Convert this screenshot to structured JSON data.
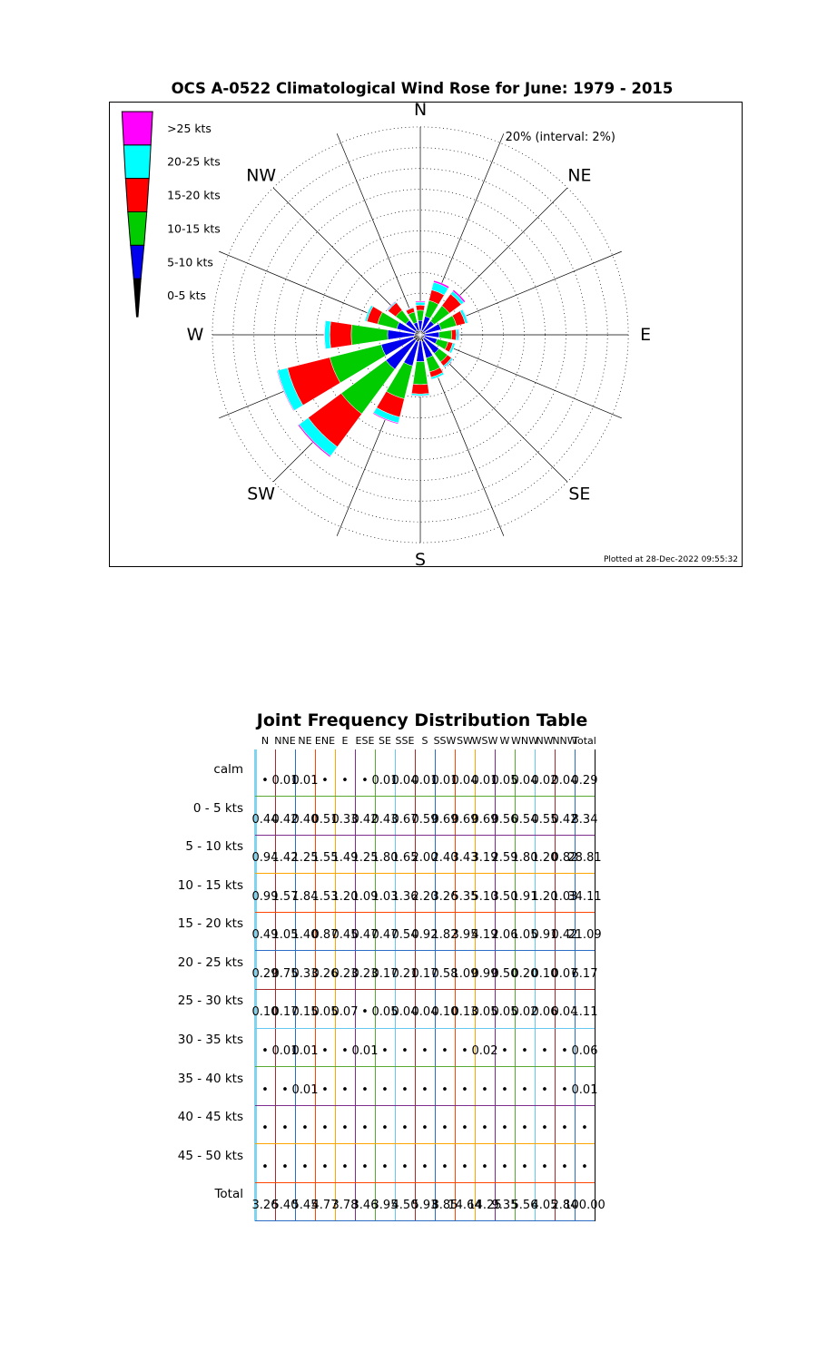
{
  "page": {
    "plotted_at": "Plotted at 28-Dec-2022 09:55:32"
  },
  "rose": {
    "compass_labels": [
      "N",
      "NE",
      "E",
      "SE",
      "S",
      "SW",
      "W",
      "NW"
    ],
    "radial_axis_label": "20% (interval: 2%)",
    "legend": [
      {
        "label": ">25 kts",
        "color": "#ff00ff"
      },
      {
        "label": "20-25 kts",
        "color": "#00ffff"
      },
      {
        "label": "15-20 kts",
        "color": "#ff0000"
      },
      {
        "label": "10-15 kts",
        "color": "#00cc00"
      },
      {
        "label": "5-10 kts",
        "color": "#0000ee"
      },
      {
        "label": "0-5 kts",
        "color": "#000000"
      }
    ]
  },
  "table_style": {
    "left_edge_color": "#7fd4f0",
    "right_edge_color": "#000000",
    "vertical_cycle": [
      "#a52a2a",
      "#2b6cc4",
      "#ff4500",
      "#ffa500",
      "#7d2d8b",
      "#58a832",
      "#64c8f0"
    ],
    "horizontal_cycle": [
      "#58a832",
      "#7d2d8b",
      "#ffa500",
      "#ff4500",
      "#2b6cc4",
      "#a52a2a",
      "#64c8f0"
    ]
  },
  "chart_data": [
    {
      "type": "bar",
      "polar": true,
      "title": "OCS A-0522 Climatological Wind Rose for June: 1979 - 2015",
      "units": "percent frequency",
      "rlim": [
        0,
        20
      ],
      "ring_interval_pct": 2,
      "radial_label": "20% (interval: 2%)",
      "directions": [
        "N",
        "NNE",
        "NE",
        "ENE",
        "E",
        "ESE",
        "SE",
        "SSE",
        "S",
        "SSW",
        "SW",
        "WSW",
        "W",
        "WNW",
        "NW",
        "NNW"
      ],
      "series": [
        {
          "name": "0-5 kts",
          "color": "#000000",
          "values": [
            0.44,
            0.42,
            0.4,
            0.51,
            0.33,
            0.42,
            0.43,
            0.67,
            0.59,
            0.69,
            0.69,
            0.69,
            0.56,
            0.54,
            0.55,
            0.42
          ]
        },
        {
          "name": "5-10 kts",
          "color": "#0000ee",
          "values": [
            0.94,
            1.42,
            1.25,
            1.55,
            1.49,
            1.25,
            1.8,
            1.65,
            2.0,
            2.4,
            3.43,
            3.19,
            2.59,
            1.8,
            1.2,
            0.82
          ]
        },
        {
          "name": "10-15 kts",
          "color": "#00cc00",
          "values": [
            0.99,
            1.57,
            1.84,
            1.53,
            1.2,
            1.09,
            1.03,
            1.36,
            2.2,
            3.26,
            5.35,
            5.1,
            3.5,
            1.91,
            1.2,
            1.03
          ]
        },
        {
          "name": "15-20 kts",
          "color": "#ff0000",
          "values": [
            0.49,
            1.05,
            1.4,
            0.87,
            0.45,
            0.47,
            0.47,
            0.54,
            0.92,
            1.82,
            3.95,
            4.19,
            2.06,
            1.05,
            0.91,
            0.42
          ]
        },
        {
          "name": "20-25 kts",
          "color": "#00ffff",
          "values": [
            0.29,
            0.75,
            0.33,
            0.26,
            0.23,
            0.23,
            0.17,
            0.21,
            0.17,
            0.58,
            1.09,
            0.99,
            0.5,
            0.2,
            0.1,
            0.07
          ]
        },
        {
          "name": ">25 kts",
          "color": "#ff00ff",
          "values": [
            0.1,
            0.18,
            0.17,
            0.05,
            0.07,
            0.01,
            0.05,
            0.04,
            0.04,
            0.1,
            0.13,
            0.07,
            0.05,
            0.02,
            0.06,
            0.04
          ]
        }
      ]
    },
    {
      "type": "table",
      "title": "Joint Frequency Distribution Table",
      "columns": [
        "N",
        "NNE",
        "NE",
        "ENE",
        "E",
        "ESE",
        "SE",
        "SSE",
        "S",
        "SSW",
        "SW",
        "WSW",
        "W",
        "WNW",
        "NW",
        "NNW",
        "Total"
      ],
      "rows": [
        {
          "label": "calm",
          "values": [
            "•",
            "0.01",
            "0.01",
            "•",
            "•",
            "•",
            "0.01",
            "0.04",
            "0.01",
            "0.01",
            "0.04",
            "0.01",
            "0.05",
            "0.04",
            "0.02",
            "0.04",
            "0.29"
          ]
        },
        {
          "label": "0 - 5  kts",
          "values": [
            "0.44",
            "0.42",
            "0.40",
            "0.51",
            "0.33",
            "0.42",
            "0.43",
            "0.67",
            "0.59",
            "0.69",
            "0.69",
            "0.69",
            "0.56",
            "0.54",
            "0.55",
            "0.42",
            "8.34"
          ]
        },
        {
          "label": "5 - 10 kts",
          "values": [
            "0.94",
            "1.42",
            "1.25",
            "1.55",
            "1.49",
            "1.25",
            "1.80",
            "1.65",
            "2.00",
            "2.40",
            "3.43",
            "3.19",
            "2.59",
            "1.80",
            "1.20",
            "0.82",
            "28.81"
          ]
        },
        {
          "label": "10 - 15 kts",
          "values": [
            "0.99",
            "1.57",
            "1.84",
            "1.53",
            "1.20",
            "1.09",
            "1.03",
            "1.36",
            "2.20",
            "3.26",
            "5.35",
            "5.10",
            "3.50",
            "1.91",
            "1.20",
            "1.03",
            "34.11"
          ]
        },
        {
          "label": "15 - 20 kts",
          "values": [
            "0.49",
            "1.05",
            "1.40",
            "0.87",
            "0.45",
            "0.47",
            "0.47",
            "0.54",
            "0.92",
            "1.82",
            "3.95",
            "4.19",
            "2.06",
            "1.05",
            "0.91",
            "0.42",
            "21.09"
          ]
        },
        {
          "label": "20 - 25 kts",
          "values": [
            "0.29",
            "0.75",
            "0.33",
            "0.26",
            "0.23",
            "0.23",
            "0.17",
            "0.21",
            "0.17",
            "0.58",
            "1.09",
            "0.99",
            "0.50",
            "0.20",
            "0.10",
            "0.07",
            "6.17"
          ]
        },
        {
          "label": "25 - 30 kts",
          "values": [
            "0.10",
            "0.17",
            "0.15",
            "0.05",
            "0.07",
            "•",
            "0.05",
            "0.04",
            "0.04",
            "0.10",
            "0.13",
            "0.05",
            "0.05",
            "0.02",
            "0.06",
            "0.04",
            "1.11"
          ]
        },
        {
          "label": "30 - 35 kts",
          "values": [
            "•",
            "0.01",
            "0.01",
            "•",
            "•",
            "0.01",
            "•",
            "•",
            "•",
            "•",
            "•",
            "0.02",
            "•",
            "•",
            "•",
            "•",
            "0.06"
          ]
        },
        {
          "label": "35 - 40 kts",
          "values": [
            "•",
            "•",
            "0.01",
            "•",
            "•",
            "•",
            "•",
            "•",
            "•",
            "•",
            "•",
            "•",
            "•",
            "•",
            "•",
            "•",
            "0.01"
          ]
        },
        {
          "label": "40 - 45 kts",
          "values": [
            "•",
            "•",
            "•",
            "•",
            "•",
            "•",
            "•",
            "•",
            "•",
            "•",
            "•",
            "•",
            "•",
            "•",
            "•",
            "•",
            "•"
          ]
        },
        {
          "label": "45 - 50 kts",
          "values": [
            "•",
            "•",
            "•",
            "•",
            "•",
            "•",
            "•",
            "•",
            "•",
            "•",
            "•",
            "•",
            "•",
            "•",
            "•",
            "•",
            "•"
          ]
        },
        {
          "label": "Total",
          "values": [
            "3.26",
            "5.40",
            "5.45",
            "4.77",
            "3.78",
            "3.46",
            "3.95",
            "4.50",
            "5.93",
            "8.85",
            "14.64",
            "14.25",
            "9.35",
            "5.56",
            "4.05",
            "2.84",
            "100.00"
          ]
        }
      ]
    }
  ]
}
